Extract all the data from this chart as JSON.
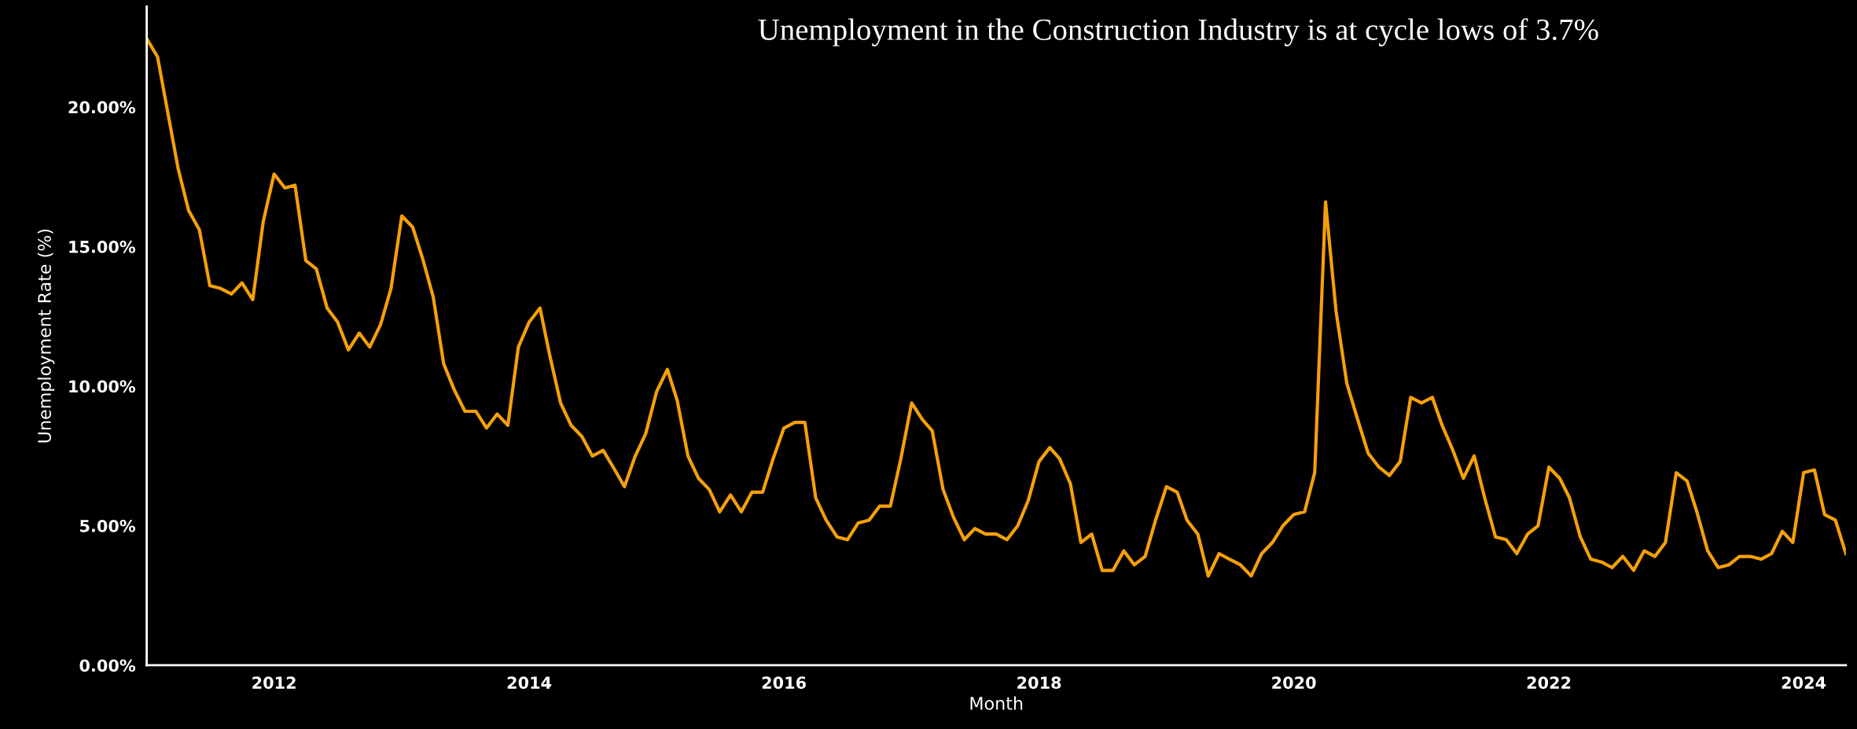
{
  "chart_data": {
    "type": "line",
    "title": "Unemployment in the Construction Industry is at cycle lows of 3.7%",
    "xlabel": "Month",
    "ylabel": "Unemployment Rate (%)",
    "x": [
      "2011-01",
      "2011-02",
      "2011-03",
      "2011-04",
      "2011-05",
      "2011-06",
      "2011-07",
      "2011-08",
      "2011-09",
      "2011-10",
      "2011-11",
      "2011-12",
      "2012-01",
      "2012-02",
      "2012-03",
      "2012-04",
      "2012-05",
      "2012-06",
      "2012-07",
      "2012-08",
      "2012-09",
      "2012-10",
      "2012-11",
      "2012-12",
      "2013-01",
      "2013-02",
      "2013-03",
      "2013-04",
      "2013-05",
      "2013-06",
      "2013-07",
      "2013-08",
      "2013-09",
      "2013-10",
      "2013-11",
      "2013-12",
      "2014-01",
      "2014-02",
      "2014-03",
      "2014-04",
      "2014-05",
      "2014-06",
      "2014-07",
      "2014-08",
      "2014-09",
      "2014-10",
      "2014-11",
      "2014-12",
      "2015-01",
      "2015-02",
      "2015-03",
      "2015-04",
      "2015-05",
      "2015-06",
      "2015-07",
      "2015-08",
      "2015-09",
      "2015-10",
      "2015-11",
      "2015-12",
      "2016-01",
      "2016-02",
      "2016-03",
      "2016-04",
      "2016-05",
      "2016-06",
      "2016-07",
      "2016-08",
      "2016-09",
      "2016-10",
      "2016-11",
      "2016-12",
      "2017-01",
      "2017-02",
      "2017-03",
      "2017-04",
      "2017-05",
      "2017-06",
      "2017-07",
      "2017-08",
      "2017-09",
      "2017-10",
      "2017-11",
      "2017-12",
      "2018-01",
      "2018-02",
      "2018-03",
      "2018-04",
      "2018-05",
      "2018-06",
      "2018-07",
      "2018-08",
      "2018-09",
      "2018-10",
      "2018-11",
      "2018-12",
      "2019-01",
      "2019-02",
      "2019-03",
      "2019-04",
      "2019-05",
      "2019-06",
      "2019-07",
      "2019-08",
      "2019-09",
      "2019-10",
      "2019-11",
      "2019-12",
      "2020-01",
      "2020-02",
      "2020-03",
      "2020-04",
      "2020-05",
      "2020-06",
      "2020-07",
      "2020-08",
      "2020-09",
      "2020-10",
      "2020-11",
      "2020-12",
      "2021-01",
      "2021-02",
      "2021-03",
      "2021-04",
      "2021-05",
      "2021-06",
      "2021-07",
      "2021-08",
      "2021-09",
      "2021-10",
      "2021-11",
      "2021-12",
      "2022-01",
      "2022-02",
      "2022-03",
      "2022-04",
      "2022-05",
      "2022-06",
      "2022-07",
      "2022-08",
      "2022-09",
      "2022-10",
      "2022-11",
      "2022-12",
      "2023-01",
      "2023-02",
      "2023-03",
      "2023-04",
      "2023-05",
      "2023-06",
      "2023-07",
      "2023-08",
      "2023-09",
      "2023-10",
      "2023-11",
      "2023-12",
      "2024-01",
      "2024-02",
      "2024-03",
      "2024-04",
      "2024-05"
    ],
    "series": [
      {
        "color": "#f5a00a",
        "values": [
          22.45,
          21.8,
          19.9,
          17.8,
          16.3,
          15.6,
          13.6,
          13.5,
          13.3,
          13.7,
          13.1,
          15.9,
          17.6,
          17.1,
          17.2,
          14.5,
          14.2,
          12.8,
          12.3,
          11.3,
          11.9,
          11.4,
          12.2,
          13.5,
          16.1,
          15.7,
          14.6,
          13.2,
          10.8,
          9.85,
          9.1,
          9.1,
          8.5,
          9.0,
          8.6,
          11.4,
          12.3,
          12.8,
          11.1,
          9.4,
          8.6,
          8.2,
          7.5,
          7.7,
          7.05,
          6.4,
          7.5,
          8.3,
          9.8,
          10.6,
          9.5,
          7.5,
          6.7,
          6.3,
          5.5,
          6.1,
          5.5,
          6.2,
          6.2,
          7.4,
          8.5,
          8.7,
          8.7,
          6.0,
          5.2,
          4.6,
          4.5,
          5.1,
          5.2,
          5.7,
          5.7,
          7.4,
          9.4,
          8.8,
          8.4,
          6.3,
          5.3,
          4.5,
          4.9,
          4.7,
          4.7,
          4.5,
          5.0,
          5.9,
          7.3,
          7.8,
          7.4,
          6.5,
          4.4,
          4.7,
          3.4,
          3.4,
          4.1,
          3.6,
          3.9,
          5.2,
          6.4,
          6.2,
          5.2,
          4.7,
          3.2,
          4.0,
          3.8,
          3.6,
          3.2,
          4.0,
          4.4,
          5.0,
          5.4,
          5.5,
          6.9,
          16.6,
          12.7,
          10.1,
          8.85,
          7.6,
          7.1,
          6.8,
          7.3,
          9.6,
          9.4,
          9.6,
          8.6,
          7.7,
          6.7,
          7.5,
          6.0,
          4.6,
          4.5,
          4.0,
          4.7,
          5.0,
          7.1,
          6.7,
          6.0,
          4.6,
          3.8,
          3.7,
          3.5,
          3.9,
          3.4,
          4.1,
          3.9,
          4.4,
          6.9,
          6.6,
          5.5,
          4.1,
          3.5,
          3.6,
          3.9,
          3.9,
          3.8,
          4.0,
          4.8,
          4.4,
          6.9,
          7.0,
          5.4,
          5.2,
          4.0
        ]
      }
    ],
    "xlim": [
      "2011-01",
      "2024-05"
    ],
    "xticks": [
      {
        "value": "2012-01",
        "label": "2012"
      },
      {
        "value": "2014-01",
        "label": "2014"
      },
      {
        "value": "2016-01",
        "label": "2016"
      },
      {
        "value": "2018-01",
        "label": "2018"
      },
      {
        "value": "2020-01",
        "label": "2020"
      },
      {
        "value": "2022-01",
        "label": "2022"
      },
      {
        "value": "2024-01",
        "label": "2024"
      }
    ],
    "ylim": [
      0,
      23.6
    ],
    "yticks": [
      {
        "value": 0,
        "label": "0.00%"
      },
      {
        "value": 5,
        "label": "5.00%"
      },
      {
        "value": 10,
        "label": "10.00%"
      },
      {
        "value": 15,
        "label": "15.00%"
      },
      {
        "value": 20,
        "label": "20.00%"
      }
    ],
    "grid": false,
    "legend": false,
    "marker": "none",
    "line_style": "solid"
  }
}
